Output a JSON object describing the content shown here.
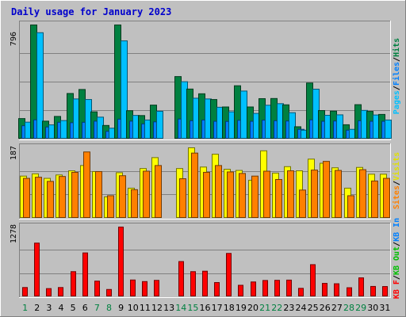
{
  "chart_data": {
    "type": "bar",
    "title": "Daily usage for January 2023",
    "days": [
      "1",
      "2",
      "3",
      "4",
      "5",
      "6",
      "7",
      "8",
      "9",
      "10",
      "11",
      "12",
      "13",
      "14",
      "15",
      "16",
      "17",
      "18",
      "19",
      "20",
      "21",
      "22",
      "23",
      "24",
      "25",
      "26",
      "27",
      "28",
      "29",
      "30",
      "31"
    ],
    "weekend_days": [
      "1",
      "7",
      "8",
      "14",
      "15",
      "21",
      "22",
      "28",
      "29"
    ],
    "panels": [
      {
        "key": "hits",
        "max_label": "796",
        "ymax": 796,
        "legend": [
          {
            "label": "Hits",
            "color": "#008040"
          },
          {
            "label": "Files",
            "color": "#0080ff"
          },
          {
            "label": "Pages",
            "color": "#00c0ff"
          }
        ],
        "series": [
          {
            "name": "Hits",
            "color": "#008040",
            "values": [
              143,
              796,
              125,
              158,
              318,
              346,
              190,
              95,
              796,
              198,
              164,
              237,
              0,
              436,
              349,
              316,
              276,
              224,
              372,
              224,
              282,
              283,
              239,
              86,
              391,
              199,
              195,
              100,
              240,
              193,
              172
            ]
          },
          {
            "name": "Files",
            "color": "#0080ff",
            "values": [
              93,
              134,
              84,
              117,
              114,
              117,
              125,
              54,
              139,
              125,
              106,
              120,
              0,
              140,
              128,
              133,
              124,
              123,
              131,
              124,
              132,
              128,
              126,
              68,
              134,
              124,
              126,
              62,
              128,
              124,
              124
            ]
          },
          {
            "name": "Pages",
            "color": "#00c0ff",
            "values": [
              118,
              742,
              99,
              129,
              280,
              276,
              153,
              76,
              685,
              165,
              133,
              194,
              0,
              400,
              285,
              280,
              222,
              190,
              335,
              179,
              236,
              247,
              184,
              62,
              348,
              166,
              169,
              68,
              200,
              168,
              133
            ]
          }
        ]
      },
      {
        "key": "visits",
        "max_label": "187",
        "ymax": 187,
        "legend": [
          {
            "label": "Visits",
            "color": "#ffff00"
          },
          {
            "label": "Sites",
            "color": "#ff8000"
          }
        ],
        "series": [
          {
            "name": "Visits",
            "color": "#ffff00",
            "values": [
              112,
              118,
              106,
              115,
              126,
              140,
              124,
              57,
              121,
              80,
              132,
              161,
              0,
              132,
              187,
              136,
              170,
              130,
              127,
              101,
              179,
              120,
              137,
              126,
              157,
              146,
              134,
              80,
              135,
              117,
              117
            ]
          },
          {
            "name": "Sites",
            "color": "#ff8000",
            "values": [
              106,
              109,
              98,
              111,
              122,
              176,
              124,
              60,
              113,
              76,
              125,
              140,
              0,
              105,
              173,
              122,
              140,
              123,
              119,
              112,
              125,
              103,
              126,
              75,
              128,
              151,
              127,
              60,
              129,
              99,
              106
            ]
          }
        ]
      },
      {
        "key": "kbytes",
        "max_label": "1278",
        "ymax": 1278,
        "legend": [
          {
            "label": "KBytes In",
            "color": "#0080ff"
          },
          {
            "label": "KBytes Out",
            "color": "#00c000"
          },
          {
            "label": "KBytes F",
            "color": "#ff0000"
          }
        ],
        "series": [
          {
            "name": "KBytes F",
            "color": "#ff0000",
            "values": [
              170,
              984,
              150,
              170,
              461,
              804,
              287,
              134,
              1278,
              308,
              279,
              301,
              0,
              646,
              461,
              469,
              261,
              795,
              211,
              272,
              299,
              302,
              306,
              155,
              589,
              246,
              239,
              166,
              347,
              190,
              188
            ]
          }
        ]
      }
    ]
  }
}
